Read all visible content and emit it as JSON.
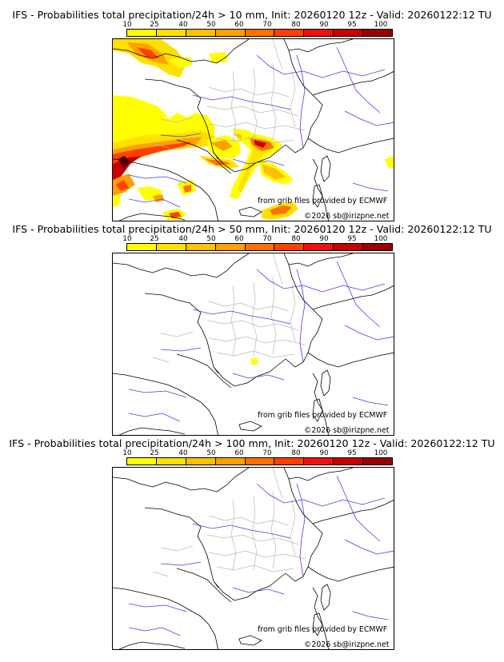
{
  "colorbar": {
    "ticks": [
      "10",
      "25",
      "40",
      "50",
      "60",
      "70",
      "80",
      "90",
      "95",
      "100"
    ],
    "colors": [
      "#ffff00",
      "#ffe000",
      "#ffc000",
      "#ffa000",
      "#ff7000",
      "#ff4000",
      "#ee1010",
      "#c80000",
      "#9a0000",
      "#5a0000"
    ]
  },
  "credit_source": "from grib files provided by ECMWF",
  "credit_copyright": "©2026 sb@irizpne.net",
  "panels": [
    {
      "title": "IFS - Probabilities total precipitation/24h > 10 mm, Init: 20260120 12z - Valid: 20260122:12 TU"
    },
    {
      "title": "IFS - Probabilities total precipitation/24h > 50 mm, Init: 20260120 12z - Valid: 20260122:12 TU"
    },
    {
      "title": "IFS - Probabilities total precipitation/24h > 100 mm, Init: 20260120 12z - Valid: 20260122:12 TU"
    }
  ]
}
